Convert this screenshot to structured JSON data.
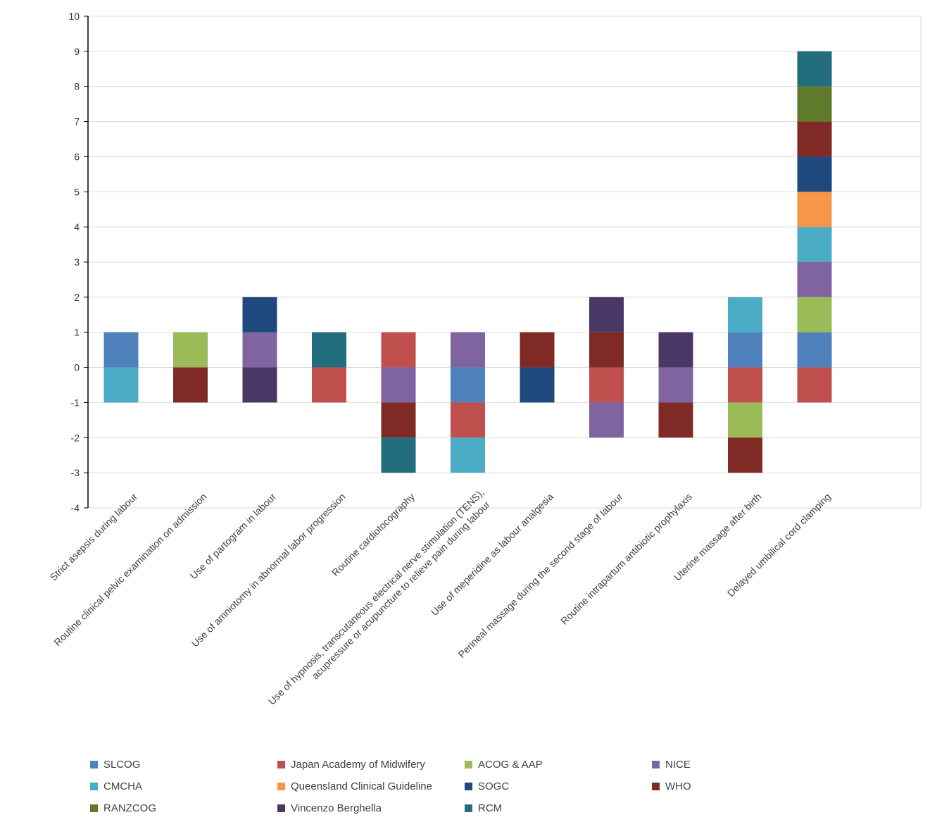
{
  "chart_data": {
    "type": "bar",
    "stacked": "diverging",
    "grid": true,
    "legend_position": "bottom",
    "ylim": [
      -4,
      10
    ],
    "yticks": [
      "10",
      "9",
      "8",
      "7",
      "6",
      "5",
      "4",
      "3",
      "2",
      "1",
      "0",
      "-1",
      "-2",
      "-3",
      "-4"
    ],
    "categories": [
      "Strict asepsis during labour",
      "Routine clinical pelvic examination on admission",
      "Use of partogram in labour",
      "Use of amniotomy in abnormal labor progression",
      "Routine cardiotocography",
      "Use of hypnosis, transcutaneous electrical nerve stimulation (TENS), acupressure or acupuncture to relieve pain during labour",
      "Use of meperidine as labour analgesia",
      "Perineal massage during the second stage of labour",
      "Routine intrapartum antibiotic prophylaxis",
      "Uterine massage after birth",
      "Delayed umbilical cord clamping"
    ],
    "series": [
      {
        "name": "SLCOG",
        "color": "#4F81BD"
      },
      {
        "name": "Japan Academy of Midwifery",
        "color": "#C0504D"
      },
      {
        "name": "ACOG & AAP",
        "color": "#9BBB59"
      },
      {
        "name": "NICE",
        "color": "#8064A2"
      },
      {
        "name": "CMCHA",
        "color": "#4BACC6"
      },
      {
        "name": "Queensland Clinical Guideline",
        "color": "#F79646"
      },
      {
        "name": "SOGC",
        "color": "#1F497D"
      },
      {
        "name": "WHO",
        "color": "#7F2A25"
      },
      {
        "name": "RANZCOG",
        "color": "#5E7A2B"
      },
      {
        "name": "Vincenzo Berghella",
        "color": "#4A3766"
      },
      {
        "name": "RCM",
        "color": "#226E7E"
      }
    ],
    "stacks": [
      {
        "positive": [
          "SLCOG"
        ],
        "negative": [
          "CMCHA"
        ]
      },
      {
        "positive": [
          "ACOG & AAP"
        ],
        "negative": [
          "WHO"
        ]
      },
      {
        "positive": [
          "NICE",
          "SOGC"
        ],
        "negative": [
          "Vincenzo Berghella"
        ]
      },
      {
        "positive": [
          "RCM"
        ],
        "negative": [
          "Japan Academy of Midwifery"
        ]
      },
      {
        "positive": [
          "Japan Academy of Midwifery"
        ],
        "negative": [
          "NICE",
          "WHO",
          "RCM"
        ]
      },
      {
        "positive": [
          "NICE"
        ],
        "negative": [
          "SLCOG",
          "Japan Academy of Midwifery",
          "CMCHA"
        ]
      },
      {
        "positive": [
          "WHO"
        ],
        "negative": [
          "SOGC"
        ]
      },
      {
        "positive": [
          "WHO",
          "Vincenzo Berghella"
        ],
        "negative": [
          "Japan Academy of Midwifery",
          "NICE"
        ]
      },
      {
        "positive": [
          "Vincenzo Berghella"
        ],
        "negative": [
          "NICE",
          "WHO"
        ]
      },
      {
        "positive": [
          "SLCOG",
          "CMCHA"
        ],
        "negative": [
          "Japan Academy of Midwifery",
          "ACOG & AAP",
          "WHO"
        ]
      },
      {
        "positive": [
          "SLCOG",
          "ACOG & AAP",
          "NICE",
          "CMCHA",
          "Queensland Clinical Guideline",
          "SOGC",
          "WHO",
          "RANZCOG",
          "RCM"
        ],
        "negative": [
          "Japan Academy of Midwifery"
        ]
      }
    ]
  },
  "legend_items": [
    {
      "label": "SLCOG",
      "color": "#4F81BD"
    },
    {
      "label": "Japan Academy of Midwifery",
      "color": "#C0504D"
    },
    {
      "label": "ACOG & AAP",
      "color": "#9BBB59"
    },
    {
      "label": "NICE",
      "color": "#8064A2"
    },
    {
      "label": "CMCHA",
      "color": "#4BACC6"
    },
    {
      "label": "Queensland Clinical Guideline",
      "color": "#F79646"
    },
    {
      "label": "SOGC",
      "color": "#1F497D"
    },
    {
      "label": "WHO",
      "color": "#7F2A25"
    },
    {
      "label": "RANZCOG",
      "color": "#5E7A2B"
    },
    {
      "label": "Vincenzo Berghella",
      "color": "#4A3766"
    },
    {
      "label": "RCM",
      "color": "#226E7E"
    }
  ]
}
